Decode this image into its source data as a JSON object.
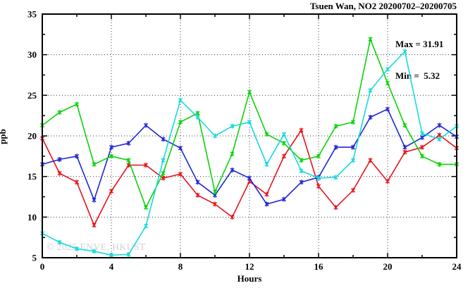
{
  "chart": {
    "title": "Tsuen Wan, NO2 20200702–20200705",
    "annotations": {
      "max": "Max = 31.91",
      "min": "Min =  5.32"
    },
    "ylabel": "ppb",
    "xlabel": "Hours",
    "watermark": "© 2025 ENVE, HKUST"
  },
  "chart_data": {
    "type": "line",
    "title": "Tsuen Wan, NO2 20200702–20200705",
    "xlabel": "Hours",
    "ylabel": "ppb",
    "xlim": [
      0,
      24
    ],
    "ylim": [
      5,
      35
    ],
    "x_ticks": [
      0,
      4,
      8,
      12,
      16,
      20,
      24
    ],
    "y_ticks": [
      5,
      10,
      15,
      20,
      25,
      30,
      35
    ],
    "x_minor_step": 2,
    "y_minor_step": 2.5,
    "grid": "dotted-at-major-ticks",
    "legend_position": "none",
    "marker": "asterisk",
    "max_value": 31.91,
    "min_value": 5.32,
    "x": [
      0,
      1,
      2,
      3,
      4,
      5,
      6,
      7,
      8,
      9,
      10,
      11,
      12,
      13,
      14,
      15,
      16,
      17,
      18,
      19,
      20,
      21,
      22,
      23,
      24
    ],
    "series": [
      {
        "name": "day-1-red",
        "color": "#e8131a",
        "values": [
          19.7,
          15.4,
          14.3,
          9.0,
          13.2,
          16.4,
          16.4,
          14.8,
          15.3,
          12.7,
          11.6,
          10.0,
          14.4,
          12.8,
          17.5,
          20.7,
          13.8,
          11.2,
          13.3,
          17.0,
          14.4,
          18.0,
          18.6,
          20.1,
          18.5
        ]
      },
      {
        "name": "day-2-blue",
        "color": "#2126d2",
        "values": [
          16.5,
          17.1,
          17.5,
          12.1,
          18.6,
          19.1,
          21.3,
          19.6,
          18.5,
          14.3,
          12.7,
          15.8,
          14.8,
          11.6,
          12.2,
          14.3,
          14.9,
          18.6,
          18.6,
          22.3,
          23.3,
          18.6,
          19.8,
          21.3,
          19.9
        ]
      },
      {
        "name": "day-3-green",
        "color": "#0bd30b",
        "values": [
          21.3,
          22.9,
          23.9,
          16.5,
          17.5,
          17.0,
          11.2,
          15.4,
          21.7,
          22.8,
          13.1,
          17.8,
          25.4,
          20.2,
          19.1,
          17.0,
          17.5,
          21.2,
          21.7,
          31.91,
          26.5,
          21.3,
          17.5,
          16.5,
          16.5
        ]
      },
      {
        "name": "day-4-cyan",
        "color": "#17dadd",
        "values": [
          8.0,
          6.9,
          6.1,
          5.8,
          5.32,
          5.4,
          8.9,
          17.0,
          24.4,
          22.3,
          20.0,
          21.2,
          21.7,
          16.5,
          20.2,
          15.7,
          14.8,
          14.9,
          17.0,
          25.6,
          28.2,
          30.4,
          20.3,
          19.6,
          21.2
        ]
      }
    ]
  }
}
